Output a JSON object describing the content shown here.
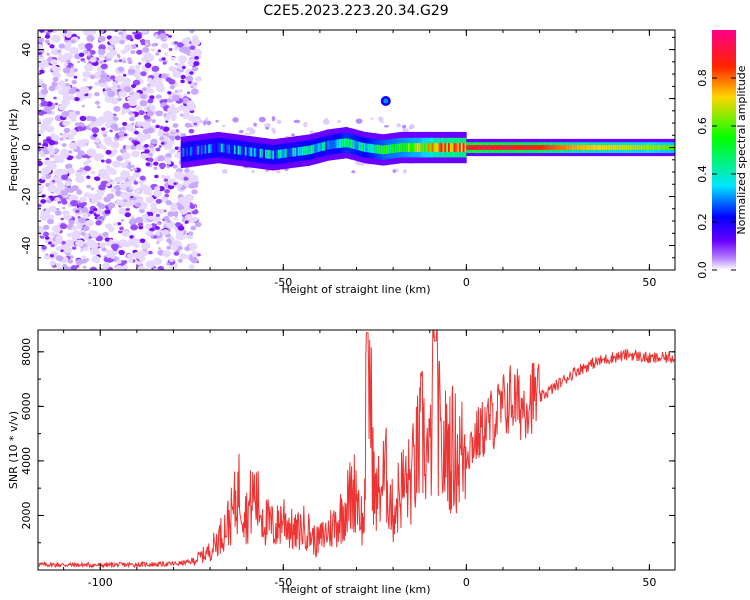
{
  "title": "C2E5.2023.223.20.34.G29",
  "chart_data": [
    {
      "type": "heatmap",
      "name": "spectrogram",
      "xlabel": "Height of straight line (km)",
      "ylabel": "Frequency (Hz)",
      "xlim": [
        -117,
        57
      ],
      "ylim": [
        -50,
        48
      ],
      "xticks": [
        -100,
        -50,
        0,
        50
      ],
      "yticks": [
        -40,
        -20,
        0,
        20,
        40
      ],
      "noise_region_km": [
        -117,
        -73
      ],
      "signal_band": {
        "x": [
          -78,
          -73,
          -68,
          -63,
          -58,
          -53,
          -48,
          -43,
          -38,
          -33,
          -28,
          -23,
          -18,
          -13,
          -8,
          -3,
          2,
          10,
          20,
          30,
          40,
          50,
          57
        ],
        "freq_hz": [
          -2,
          -1,
          0,
          -1,
          -2,
          -3,
          -2,
          -1,
          1,
          2,
          0,
          -1,
          0,
          0,
          0,
          0,
          0,
          0,
          0,
          0,
          0,
          0,
          0
        ],
        "amplitude": [
          0.25,
          0.2,
          0.25,
          0.3,
          0.3,
          0.35,
          0.35,
          0.4,
          0.35,
          0.45,
          0.4,
          0.5,
          0.55,
          0.6,
          0.75,
          0.8,
          0.9,
          0.9,
          0.85,
          0.75,
          0.7,
          0.65,
          0.6
        ]
      },
      "spot": {
        "x": -22,
        "freq_hz": 19,
        "amplitude": 0.3
      },
      "colorbar": {
        "label": "Normalized spectral amplitude",
        "range": [
          0,
          1
        ],
        "ticks": [
          "0.0",
          "0.2",
          "0.4",
          "0.6",
          "0.8"
        ],
        "colors": [
          "#ffffff",
          "#b57fff",
          "#6a00ff",
          "#0000ff",
          "#00e5ff",
          "#00ff00",
          "#ffd700",
          "#ff2200",
          "#ff0088"
        ]
      }
    },
    {
      "type": "line",
      "name": "snr",
      "xlabel": "Height of straight line (km)",
      "ylabel": "SNR (10 * v/v)",
      "xlim": [
        -117,
        57
      ],
      "ylim": [
        0,
        8800
      ],
      "xticks": [
        -100,
        -50,
        0,
        50
      ],
      "yticks": [
        2000,
        4000,
        6000,
        8000
      ],
      "color": "#ee3333",
      "x": [
        -117,
        -100,
        -80,
        -75,
        -70,
        -67,
        -64,
        -62,
        -60,
        -58,
        -55,
        -52,
        -50,
        -47,
        -44,
        -41,
        -38,
        -35,
        -32,
        -30,
        -28,
        -27,
        -25,
        -22,
        -20,
        -18,
        -15,
        -12,
        -10,
        -8.5,
        -7,
        -5,
        -2,
        0,
        3,
        6,
        9,
        12,
        15,
        18,
        20,
        25,
        30,
        35,
        40,
        45,
        50,
        57
      ],
      "y": [
        200,
        180,
        220,
        300,
        700,
        1300,
        2000,
        3000,
        2000,
        2800,
        1800,
        1500,
        2000,
        1300,
        1600,
        1000,
        1400,
        1800,
        2600,
        3000,
        1400,
        8700,
        2500,
        3500,
        2000,
        3000,
        3300,
        5000,
        3800,
        8400,
        4000,
        4600,
        4200,
        4400,
        4900,
        5400,
        5800,
        6300,
        6000,
        6400,
        6300,
        6800,
        7300,
        7600,
        7800,
        7900,
        7750,
        7800
      ]
    }
  ]
}
